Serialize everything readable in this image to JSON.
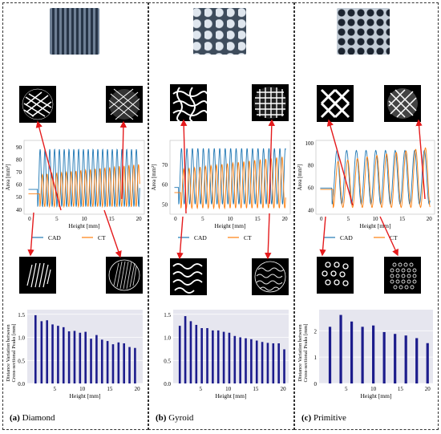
{
  "colors": {
    "cad": "#1f77b4",
    "ct": "#ff7f0e",
    "bar": "#1c1c8c",
    "arrow": "#e41a1c",
    "bar_bg": "#e6e6ef"
  },
  "panels": [
    {
      "id": "a",
      "label": "(a)",
      "name": "Diamond"
    },
    {
      "id": "b",
      "label": "(b)",
      "name": "Gyroid"
    },
    {
      "id": "c",
      "label": "(c)",
      "name": "Primitive"
    }
  ],
  "chart_data": [
    {
      "type": "line",
      "panel": "Diamond",
      "xlabel": "Height [mm]",
      "ylabel": "Area [mm²]",
      "xlim": [
        -1,
        21
      ],
      "ylim": [
        36,
        95
      ],
      "xticks": [
        0,
        5,
        10,
        15,
        20
      ],
      "yticks": [
        40,
        50,
        60,
        70,
        80,
        90
      ],
      "series": [
        {
          "name": "CAD",
          "baseline": 45,
          "amplitude": 43,
          "start": 1.5,
          "period": 0.88,
          "peak_height": 88,
          "trough": 42
        },
        {
          "name": "CT",
          "baseline": 45,
          "amplitude": 40,
          "start": 1.9,
          "period": 0.88,
          "peak_height": 76,
          "trough": 42
        }
      ],
      "legend": "bottom"
    },
    {
      "type": "line",
      "panel": "Gyroid",
      "xlabel": "Height [mm]",
      "ylabel": "Area [mm²]",
      "xlim": [
        -1,
        21
      ],
      "ylim": [
        45,
        82
      ],
      "xticks": [
        0,
        5,
        10,
        15,
        20
      ],
      "yticks": [
        50,
        60,
        70
      ],
      "series": [
        {
          "name": "CAD",
          "start": 0.6,
          "period": 1.0,
          "peak_height": 78,
          "trough": 50
        },
        {
          "name": "CT",
          "start": 1.0,
          "period": 1.0,
          "peak_height": 74,
          "trough": 48
        }
      ],
      "legend": "bottom"
    },
    {
      "type": "line",
      "panel": "Primitive",
      "xlabel": "Height [mm]",
      "ylabel": "Area [mm²]",
      "xlim": [
        -1,
        21
      ],
      "ylim": [
        36,
        102
      ],
      "xticks": [
        0,
        5,
        10,
        15,
        20
      ],
      "yticks": [
        40,
        60,
        80,
        100
      ],
      "series": [
        {
          "name": "CAD",
          "start": 2.0,
          "period": 1.8,
          "peak_height": 93,
          "trough": 45
        },
        {
          "name": "CT",
          "start": 2.2,
          "period": 1.8,
          "peak_height": 96,
          "trough": 42
        }
      ],
      "legend": "bottom"
    },
    {
      "type": "bar",
      "panel": "Diamond",
      "xlabel": "Height [mm]",
      "ylabel": "Distance Variation between Cross-sectional Peaks [mm]",
      "xlim": [
        0,
        21
      ],
      "ylim": [
        0,
        1.6
      ],
      "xticks": [
        5,
        10,
        15,
        20
      ],
      "yticks": [
        0.0,
        0.5,
        1.0,
        1.5
      ],
      "x": [
        1.5,
        2.6,
        3.6,
        4.6,
        5.6,
        6.6,
        7.6,
        8.6,
        9.6,
        10.6,
        11.6,
        12.6,
        13.6,
        14.6,
        15.6,
        16.6,
        17.6,
        18.6,
        19.6
      ],
      "values": [
        1.48,
        1.35,
        1.37,
        1.28,
        1.25,
        1.22,
        1.13,
        1.14,
        1.1,
        1.12,
        0.97,
        1.05,
        0.95,
        0.92,
        0.85,
        0.89,
        0.87,
        0.79,
        0.77
      ]
    },
    {
      "type": "bar",
      "panel": "Gyroid",
      "xlabel": "Height [mm]",
      "ylabel": "",
      "xlim": [
        0,
        21
      ],
      "ylim": [
        0,
        1.6
      ],
      "xticks": [
        5,
        10,
        15,
        20
      ],
      "yticks": [
        0.0,
        0.5,
        1.0,
        1.5
      ],
      "x": [
        1.2,
        2.2,
        3.2,
        4.2,
        5.2,
        6.2,
        7.2,
        8.2,
        9.2,
        10.2,
        11.2,
        12.2,
        13.2,
        14.2,
        15.2,
        16.2,
        17.2,
        18.2,
        19.2,
        20.2
      ],
      "values": [
        1.25,
        1.46,
        1.35,
        1.27,
        1.2,
        1.2,
        1.15,
        1.15,
        1.12,
        1.1,
        1.03,
        1.0,
        0.98,
        0.96,
        0.93,
        0.9,
        0.88,
        0.87,
        0.87,
        0.74
      ]
    },
    {
      "type": "bar",
      "panel": "Primitive",
      "xlabel": "Height [mm]",
      "ylabel": "Distance Variation between Cross-sectional Peaks [mm]",
      "xlim": [
        0,
        21
      ],
      "ylim": [
        0,
        2.8
      ],
      "xticks": [
        5,
        10,
        15,
        20
      ],
      "yticks": [
        0,
        1,
        2
      ],
      "x": [
        2.0,
        4.0,
        6.0,
        8.0,
        10.0,
        12.0,
        14.0,
        16.0,
        18.0,
        20.0
      ],
      "values": [
        2.15,
        2.6,
        2.35,
        2.15,
        2.2,
        1.95,
        1.88,
        1.82,
        1.72,
        1.53
      ]
    }
  ]
}
